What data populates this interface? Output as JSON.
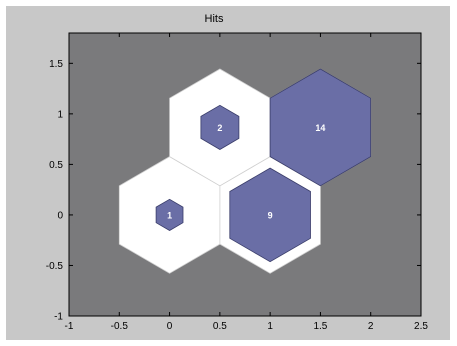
{
  "chart_data": {
    "type": "hexbin",
    "title": "Hits",
    "xlabel": "",
    "ylabel": "",
    "xlim": [
      -1,
      2.5
    ],
    "ylim": [
      -1,
      1.8
    ],
    "xticks": [
      -1,
      -0.5,
      0,
      0.5,
      1,
      1.5,
      2,
      2.5
    ],
    "yticks": [
      -1,
      -0.5,
      0,
      0.5,
      1,
      1.5
    ],
    "xtick_labels": [
      "-1",
      "-0.5",
      "0",
      "0.5",
      "1",
      "1.5",
      "2",
      "2.5"
    ],
    "ytick_labels": [
      "-1",
      "-0.5",
      "0",
      "0.5",
      "1",
      "1.5"
    ],
    "grid": false,
    "max_hits": 14,
    "neurons": [
      {
        "x": 0,
        "y": 0,
        "hits": 1
      },
      {
        "x": 1,
        "y": 0,
        "hits": 9
      },
      {
        "x": 0.5,
        "y": 0.866,
        "hits": 2
      },
      {
        "x": 1.5,
        "y": 0.866,
        "hits": 14
      }
    ]
  },
  "colors": {
    "figure_background": "#c8c8c8",
    "axes_background": "#7a7a7c",
    "neuron_fill": "#ffffff",
    "neuron_edge": "#d0d0d0",
    "hit_fill": "#6a6ea6",
    "hit_edge": "#3a3d6a",
    "hit_label": "#ffffff",
    "text": "#000000"
  }
}
